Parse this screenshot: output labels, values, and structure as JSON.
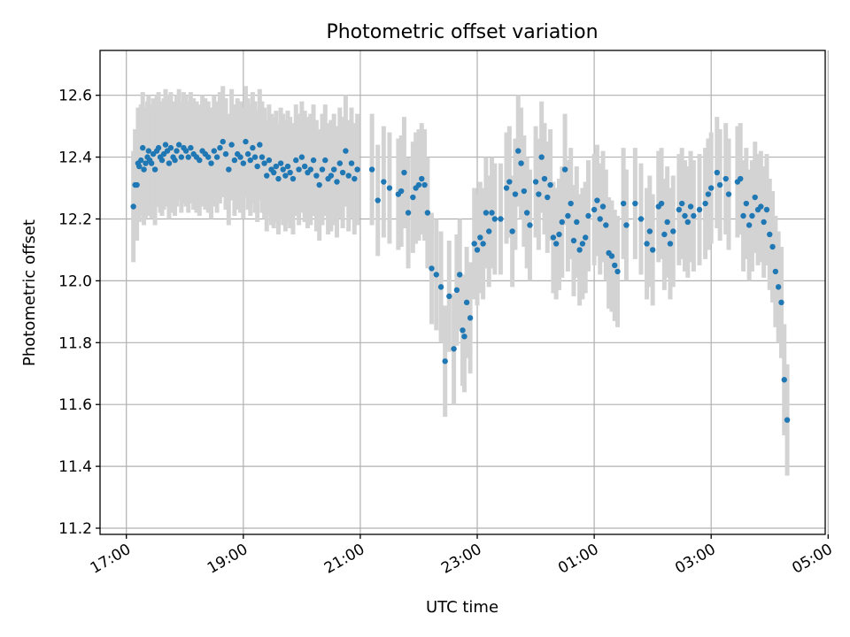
{
  "chart_data": {
    "type": "scatter",
    "title": "Photometric offset variation",
    "xlabel": "UTC time",
    "ylabel": "Photometric offset",
    "x_unit": "hours since 17:00 UTC (x axis labeled by clock time)",
    "xlim": [
      -0.45,
      11.95
    ],
    "ylim": [
      11.18,
      12.745
    ],
    "grid": true,
    "x_ticks": [
      {
        "x": 0,
        "label": "17:00"
      },
      {
        "x": 2,
        "label": "19:00"
      },
      {
        "x": 4,
        "label": "21:00"
      },
      {
        "x": 6,
        "label": "23:00"
      },
      {
        "x": 8,
        "label": "01:00"
      },
      {
        "x": 10,
        "label": "03:00"
      },
      {
        "x": 12,
        "label": "05:00"
      }
    ],
    "y_ticks": [
      {
        "y": 11.2,
        "label": "11.2"
      },
      {
        "y": 11.4,
        "label": "11.4"
      },
      {
        "y": 11.6,
        "label": "11.6"
      },
      {
        "y": 11.8,
        "label": "11.8"
      },
      {
        "y": 12.0,
        "label": "12.0"
      },
      {
        "y": 12.2,
        "label": "12.2"
      },
      {
        "y": 12.4,
        "label": "12.4"
      },
      {
        "y": 12.6,
        "label": "12.6"
      }
    ],
    "colors": {
      "points": "#1f77b4",
      "error_bars": "#d3d3d3",
      "grid": "#b0b0b0"
    },
    "series": [
      {
        "marker": "point",
        "error_bar_halfwidth": 0.18,
        "points": [
          [
            0.12,
            12.24
          ],
          [
            0.15,
            12.31
          ],
          [
            0.18,
            12.31
          ],
          [
            0.2,
            12.38
          ],
          [
            0.22,
            12.37
          ],
          [
            0.25,
            12.39
          ],
          [
            0.28,
            12.43
          ],
          [
            0.3,
            12.36
          ],
          [
            0.33,
            12.38
          ],
          [
            0.36,
            12.4
          ],
          [
            0.38,
            12.42
          ],
          [
            0.4,
            12.39
          ],
          [
            0.43,
            12.38
          ],
          [
            0.46,
            12.41
          ],
          [
            0.49,
            12.36
          ],
          [
            0.52,
            12.42
          ],
          [
            0.55,
            12.43
          ],
          [
            0.58,
            12.4
          ],
          [
            0.61,
            12.39
          ],
          [
            0.64,
            12.41
          ],
          [
            0.67,
            12.44
          ],
          [
            0.7,
            12.42
          ],
          [
            0.73,
            12.38
          ],
          [
            0.76,
            12.43
          ],
          [
            0.8,
            12.4
          ],
          [
            0.83,
            12.39
          ],
          [
            0.86,
            12.42
          ],
          [
            0.9,
            12.44
          ],
          [
            0.94,
            12.4
          ],
          [
            0.98,
            12.43
          ],
          [
            1.02,
            12.42
          ],
          [
            1.06,
            12.4
          ],
          [
            1.1,
            12.43
          ],
          [
            1.15,
            12.41
          ],
          [
            1.2,
            12.4
          ],
          [
            1.25,
            12.39
          ],
          [
            1.3,
            12.42
          ],
          [
            1.35,
            12.41
          ],
          [
            1.4,
            12.4
          ],
          [
            1.45,
            12.38
          ],
          [
            1.5,
            12.42
          ],
          [
            1.55,
            12.4
          ],
          [
            1.6,
            12.43
          ],
          [
            1.65,
            12.45
          ],
          [
            1.7,
            12.41
          ],
          [
            1.75,
            12.36
          ],
          [
            1.8,
            12.44
          ],
          [
            1.85,
            12.39
          ],
          [
            1.9,
            12.41
          ],
          [
            1.95,
            12.4
          ],
          [
            2.0,
            12.38
          ],
          [
            2.04,
            12.45
          ],
          [
            2.08,
            12.41
          ],
          [
            2.12,
            12.39
          ],
          [
            2.16,
            12.43
          ],
          [
            2.2,
            12.4
          ],
          [
            2.24,
            12.37
          ],
          [
            2.28,
            12.44
          ],
          [
            2.32,
            12.4
          ],
          [
            2.36,
            12.38
          ],
          [
            2.4,
            12.34
          ],
          [
            2.44,
            12.39
          ],
          [
            2.48,
            12.36
          ],
          [
            2.52,
            12.35
          ],
          [
            2.56,
            12.37
          ],
          [
            2.6,
            12.33
          ],
          [
            2.64,
            12.38
          ],
          [
            2.68,
            12.36
          ],
          [
            2.72,
            12.34
          ],
          [
            2.76,
            12.37
          ],
          [
            2.8,
            12.35
          ],
          [
            2.85,
            12.33
          ],
          [
            2.9,
            12.39
          ],
          [
            2.95,
            12.36
          ],
          [
            3.0,
            12.4
          ],
          [
            3.05,
            12.37
          ],
          [
            3.1,
            12.35
          ],
          [
            3.15,
            12.36
          ],
          [
            3.2,
            12.39
          ],
          [
            3.25,
            12.34
          ],
          [
            3.3,
            12.31
          ],
          [
            3.35,
            12.36
          ],
          [
            3.4,
            12.39
          ],
          [
            3.45,
            12.33
          ],
          [
            3.5,
            12.34
          ],
          [
            3.55,
            12.36
          ],
          [
            3.6,
            12.32
          ],
          [
            3.65,
            12.38
          ],
          [
            3.7,
            12.35
          ],
          [
            3.75,
            12.42
          ],
          [
            3.8,
            12.34
          ],
          [
            3.85,
            12.38
          ],
          [
            3.9,
            12.33
          ],
          [
            3.95,
            12.36
          ],
          [
            4.2,
            12.36
          ],
          [
            4.3,
            12.26
          ],
          [
            4.4,
            12.32
          ],
          [
            4.5,
            12.3
          ],
          [
            4.65,
            12.28
          ],
          [
            4.7,
            12.29
          ],
          [
            4.75,
            12.35
          ],
          [
            4.82,
            12.22
          ],
          [
            4.9,
            12.27
          ],
          [
            4.95,
            12.3
          ],
          [
            5.0,
            12.31
          ],
          [
            5.05,
            12.33
          ],
          [
            5.1,
            12.31
          ],
          [
            5.15,
            12.22
          ],
          [
            5.22,
            12.04
          ],
          [
            5.3,
            12.02
          ],
          [
            5.38,
            11.98
          ],
          [
            5.45,
            11.74
          ],
          [
            5.52,
            11.95
          ],
          [
            5.6,
            11.78
          ],
          [
            5.65,
            11.97
          ],
          [
            5.7,
            12.02
          ],
          [
            5.75,
            11.84
          ],
          [
            5.78,
            11.82
          ],
          [
            5.82,
            11.93
          ],
          [
            5.88,
            11.88
          ],
          [
            5.95,
            12.12
          ],
          [
            6.0,
            12.1
          ],
          [
            6.05,
            12.14
          ],
          [
            6.1,
            12.12
          ],
          [
            6.15,
            12.22
          ],
          [
            6.2,
            12.16
          ],
          [
            6.25,
            12.22
          ],
          [
            6.3,
            12.2
          ],
          [
            6.4,
            12.2
          ],
          [
            6.5,
            12.3
          ],
          [
            6.55,
            12.32
          ],
          [
            6.6,
            12.16
          ],
          [
            6.65,
            12.28
          ],
          [
            6.7,
            12.42
          ],
          [
            6.75,
            12.38
          ],
          [
            6.8,
            12.29
          ],
          [
            6.85,
            12.22
          ],
          [
            6.9,
            12.18
          ],
          [
            7.0,
            12.32
          ],
          [
            7.05,
            12.28
          ],
          [
            7.1,
            12.4
          ],
          [
            7.15,
            12.33
          ],
          [
            7.2,
            12.27
          ],
          [
            7.25,
            12.31
          ],
          [
            7.3,
            12.14
          ],
          [
            7.35,
            12.12
          ],
          [
            7.4,
            12.15
          ],
          [
            7.45,
            12.19
          ],
          [
            7.5,
            12.36
          ],
          [
            7.55,
            12.21
          ],
          [
            7.6,
            12.25
          ],
          [
            7.65,
            12.13
          ],
          [
            7.7,
            12.19
          ],
          [
            7.75,
            12.1
          ],
          [
            7.8,
            12.12
          ],
          [
            7.85,
            12.14
          ],
          [
            7.9,
            12.21
          ],
          [
            8.0,
            12.23
          ],
          [
            8.05,
            12.26
          ],
          [
            8.1,
            12.2
          ],
          [
            8.15,
            12.24
          ],
          [
            8.2,
            12.18
          ],
          [
            8.25,
            12.09
          ],
          [
            8.3,
            12.08
          ],
          [
            8.35,
            12.05
          ],
          [
            8.4,
            12.03
          ],
          [
            8.5,
            12.25
          ],
          [
            8.55,
            12.18
          ],
          [
            8.7,
            12.25
          ],
          [
            8.8,
            12.2
          ],
          [
            8.9,
            12.12
          ],
          [
            8.95,
            12.16
          ],
          [
            9.0,
            12.1
          ],
          [
            9.1,
            12.24
          ],
          [
            9.15,
            12.25
          ],
          [
            9.2,
            12.15
          ],
          [
            9.25,
            12.19
          ],
          [
            9.3,
            12.12
          ],
          [
            9.35,
            12.16
          ],
          [
            9.45,
            12.23
          ],
          [
            9.5,
            12.25
          ],
          [
            9.55,
            12.21
          ],
          [
            9.6,
            12.19
          ],
          [
            9.65,
            12.24
          ],
          [
            9.7,
            12.21
          ],
          [
            9.8,
            12.23
          ],
          [
            9.9,
            12.25
          ],
          [
            9.95,
            12.28
          ],
          [
            10.0,
            12.3
          ],
          [
            10.1,
            12.35
          ],
          [
            10.15,
            12.31
          ],
          [
            10.25,
            12.33
          ],
          [
            10.3,
            12.28
          ],
          [
            10.45,
            12.32
          ],
          [
            10.5,
            12.33
          ],
          [
            10.55,
            12.21
          ],
          [
            10.6,
            12.25
          ],
          [
            10.65,
            12.18
          ],
          [
            10.7,
            12.21
          ],
          [
            10.75,
            12.27
          ],
          [
            10.8,
            12.23
          ],
          [
            10.85,
            12.24
          ],
          [
            10.9,
            12.19
          ],
          [
            10.95,
            12.23
          ],
          [
            11.0,
            12.15
          ],
          [
            11.05,
            12.11
          ],
          [
            11.1,
            12.03
          ],
          [
            11.15,
            11.98
          ],
          [
            11.2,
            11.93
          ],
          [
            11.25,
            11.68
          ],
          [
            11.3,
            11.55
          ]
        ]
      }
    ]
  }
}
